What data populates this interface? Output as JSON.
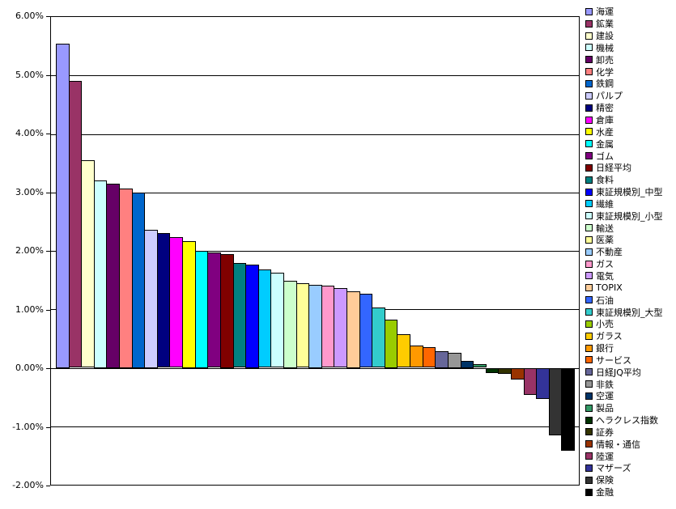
{
  "chart_data": {
    "type": "bar",
    "title": "",
    "xlabel": "",
    "ylabel": "",
    "ylim": [
      -2.0,
      6.0
    ],
    "y_tick_step": 1.0,
    "y_tick_labels": [
      "6.00%",
      "5.00%",
      "4.00%",
      "3.00%",
      "2.00%",
      "1.00%",
      "0.00%",
      "-1.00%",
      "-2.00%"
    ],
    "grid": "horizontal",
    "legend_position": "right",
    "series": [
      {
        "name": "海運",
        "value": 5.55,
        "color": "#9999FF"
      },
      {
        "name": "鉱業",
        "value": 4.9,
        "color": "#993366"
      },
      {
        "name": "建設",
        "value": 3.55,
        "color": "#FFFFCC"
      },
      {
        "name": "機械",
        "value": 3.21,
        "color": "#CCFFFF"
      },
      {
        "name": "卸売",
        "value": 3.15,
        "color": "#660066"
      },
      {
        "name": "化学",
        "value": 3.07,
        "color": "#FF8080"
      },
      {
        "name": "鉄鋼",
        "value": 3.0,
        "color": "#0066CC"
      },
      {
        "name": "パルプ",
        "value": 2.36,
        "color": "#CCCCFF"
      },
      {
        "name": "精密",
        "value": 2.3,
        "color": "#000080"
      },
      {
        "name": "倉庫",
        "value": 2.23,
        "color": "#FF00FF"
      },
      {
        "name": "水産",
        "value": 2.17,
        "color": "#FFFF00"
      },
      {
        "name": "金属",
        "value": 2.0,
        "color": "#00FFFF"
      },
      {
        "name": "ゴム",
        "value": 1.97,
        "color": "#800080"
      },
      {
        "name": "日経平均",
        "value": 1.95,
        "color": "#800000"
      },
      {
        "name": "食料",
        "value": 1.79,
        "color": "#008080"
      },
      {
        "name": "東証規模別_中型",
        "value": 1.77,
        "color": "#0000FF"
      },
      {
        "name": "繊維",
        "value": 1.68,
        "color": "#00CCFF"
      },
      {
        "name": "東証規模別_小型",
        "value": 1.62,
        "color": "#CCFFFF"
      },
      {
        "name": "輸送",
        "value": 1.49,
        "color": "#CCFFCC"
      },
      {
        "name": "医薬",
        "value": 1.44,
        "color": "#FFFF99"
      },
      {
        "name": "不動産",
        "value": 1.42,
        "color": "#99CCFF"
      },
      {
        "name": "ガス",
        "value": 1.4,
        "color": "#FF99CC"
      },
      {
        "name": "電気",
        "value": 1.36,
        "color": "#CC99FF"
      },
      {
        "name": "TOPIX",
        "value": 1.31,
        "color": "#FFCC99"
      },
      {
        "name": "石油",
        "value": 1.26,
        "color": "#3366FF"
      },
      {
        "name": "東証規模別_大型",
        "value": 1.03,
        "color": "#33CCCC"
      },
      {
        "name": "小売",
        "value": 0.83,
        "color": "#99CC00"
      },
      {
        "name": "ガラス",
        "value": 0.57,
        "color": "#FFCC00"
      },
      {
        "name": "銀行",
        "value": 0.38,
        "color": "#FF9900"
      },
      {
        "name": "サービス",
        "value": 0.35,
        "color": "#FF6600"
      },
      {
        "name": "日経JQ平均",
        "value": 0.29,
        "color": "#666699"
      },
      {
        "name": "非鉄",
        "value": 0.26,
        "color": "#969696"
      },
      {
        "name": "空運",
        "value": 0.12,
        "color": "#003366"
      },
      {
        "name": "製品",
        "value": 0.06,
        "color": "#339966"
      },
      {
        "name": "ヘラクレス指数",
        "value": -0.08,
        "color": "#003300"
      },
      {
        "name": "証券",
        "value": -0.1,
        "color": "#333300"
      },
      {
        "name": "情報・通信",
        "value": -0.19,
        "color": "#993300"
      },
      {
        "name": "陸運",
        "value": -0.46,
        "color": "#993366"
      },
      {
        "name": "マザーズ",
        "value": -0.52,
        "color": "#333399"
      },
      {
        "name": "保険",
        "value": -1.15,
        "color": "#333333"
      },
      {
        "name": "金融",
        "value": -1.41,
        "color": "#000000"
      }
    ]
  },
  "colors": {
    "background": "#FFFFFF",
    "plot_background": "#FFFFFF",
    "axis_line": "#000000",
    "gridline": "#000000",
    "bar_border": "#000000",
    "text": "#000000"
  }
}
